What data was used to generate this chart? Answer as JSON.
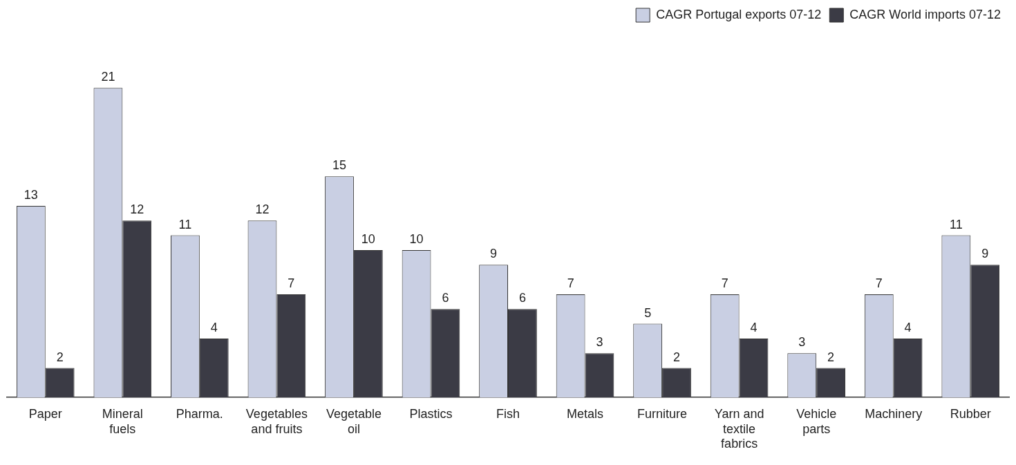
{
  "chart_data": {
    "type": "bar",
    "categories": [
      "Paper",
      "Mineral fuels",
      "Pharma.",
      "Vegetables and fruits",
      "Vegetable oil",
      "Plastics",
      "Fish",
      "Metals",
      "Furniture",
      "Yarn and textile fabrics",
      "Vehicle parts",
      "Machinery",
      "Rubber"
    ],
    "series": [
      {
        "name": "CAGR Portugal exports 07-12",
        "color": "#c9cfe3",
        "values": [
          13,
          21,
          11,
          12,
          15,
          10,
          9,
          7,
          5,
          7,
          3,
          7,
          11
        ]
      },
      {
        "name": "CAGR World imports 07-12",
        "color": "#3b3b45",
        "values": [
          2,
          12,
          4,
          7,
          10,
          6,
          6,
          3,
          2,
          4,
          2,
          4,
          9
        ]
      }
    ],
    "data_labels": true,
    "legend": "top right",
    "grid": false,
    "tick_labels": "x"
  }
}
